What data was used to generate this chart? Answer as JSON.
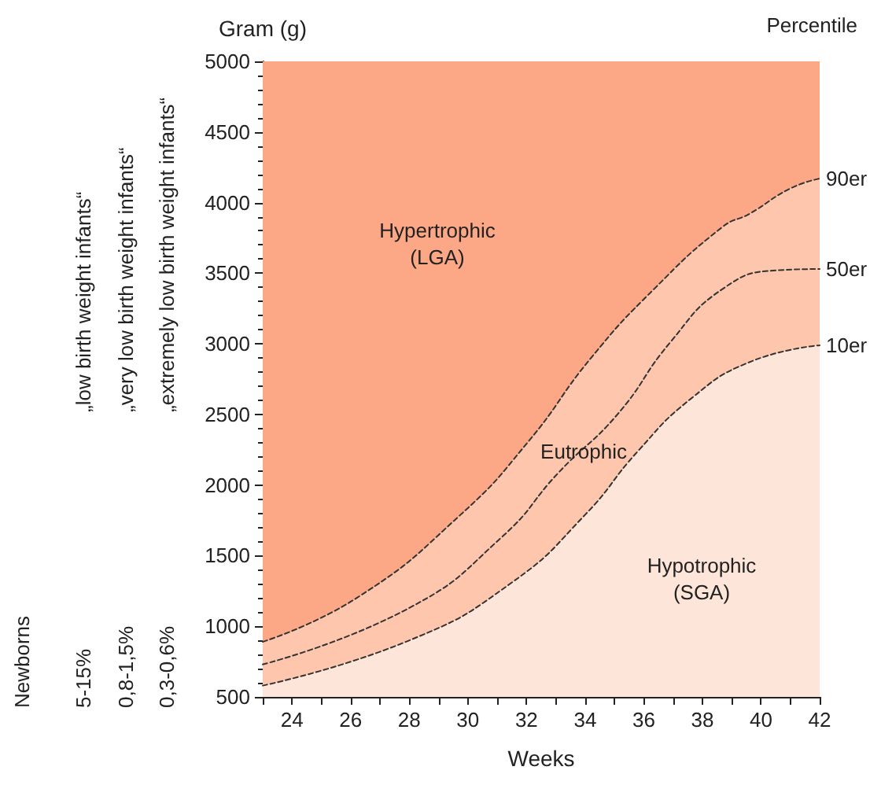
{
  "chart_data": {
    "type": "line",
    "xlabel": "Weeks",
    "ylabel": "Gram (g)",
    "series": [
      {
        "name": "90er",
        "type": "area",
        "color": "#fdc6ad",
        "x": [
          23,
          26.2,
          29.75,
          32.07,
          34.2,
          36.36,
          38.7,
          39.6,
          41,
          42
        ],
        "values": [
          890,
          1200,
          1790,
          2310,
          2900,
          3390,
          3830,
          3920,
          4100,
          4170
        ]
      },
      {
        "name": "50er",
        "type": "line",
        "color": "#333333",
        "x": [
          23,
          28,
          31.2,
          33.1,
          35.1,
          36.9,
          38.7,
          40.5,
          42
        ],
        "values": [
          730,
          1130,
          1640,
          2090,
          2500,
          3010,
          3390,
          3520,
          3530
        ]
      },
      {
        "name": "10er",
        "type": "area",
        "color": "#fee5d9",
        "x": [
          23,
          28,
          31.5,
          34,
          35.8,
          37.6,
          39.6,
          42
        ],
        "values": [
          580,
          900,
          1310,
          1790,
          2240,
          2610,
          2870,
          2990
        ]
      }
    ],
    "bands": [
      {
        "axis": "y",
        "from": 500,
        "to": 5000,
        "color": "#fca785"
      }
    ],
    "xlim": [
      23,
      42
    ],
    "xticks": [
      {
        "value": 23,
        "label": null
      },
      24,
      {
        "value": 25,
        "label": null
      },
      26,
      {
        "value": 27,
        "label": null
      },
      28,
      {
        "value": 29,
        "label": null
      },
      30,
      {
        "value": 31,
        "label": null
      },
      32,
      {
        "value": 33,
        "label": null
      },
      34,
      {
        "value": 35,
        "label": null
      },
      36,
      {
        "value": 37,
        "label": null
      },
      38,
      {
        "value": 39,
        "label": null
      },
      40,
      {
        "value": 41,
        "label": null
      },
      42
    ],
    "ylim": [
      500,
      5000
    ],
    "yticks": [
      500,
      1000,
      1500,
      2000,
      2500,
      3000,
      3500,
      4000,
      4500,
      5000
    ],
    "line_style": "dashed",
    "marker": "none",
    "grid": false,
    "legend": false,
    "annotations": [
      "Hypertrophic\n(LGA)",
      "Eutrophic",
      "Hypotrophic\n(SGA)",
      "Percentile",
      "„low birth weight infants“",
      "„very low birth weight infants“",
      "„extremely low birth weight infants“",
      "Newborns",
      "5-15%",
      "0,8-1,5%",
      "0,3-0,6%"
    ]
  }
}
